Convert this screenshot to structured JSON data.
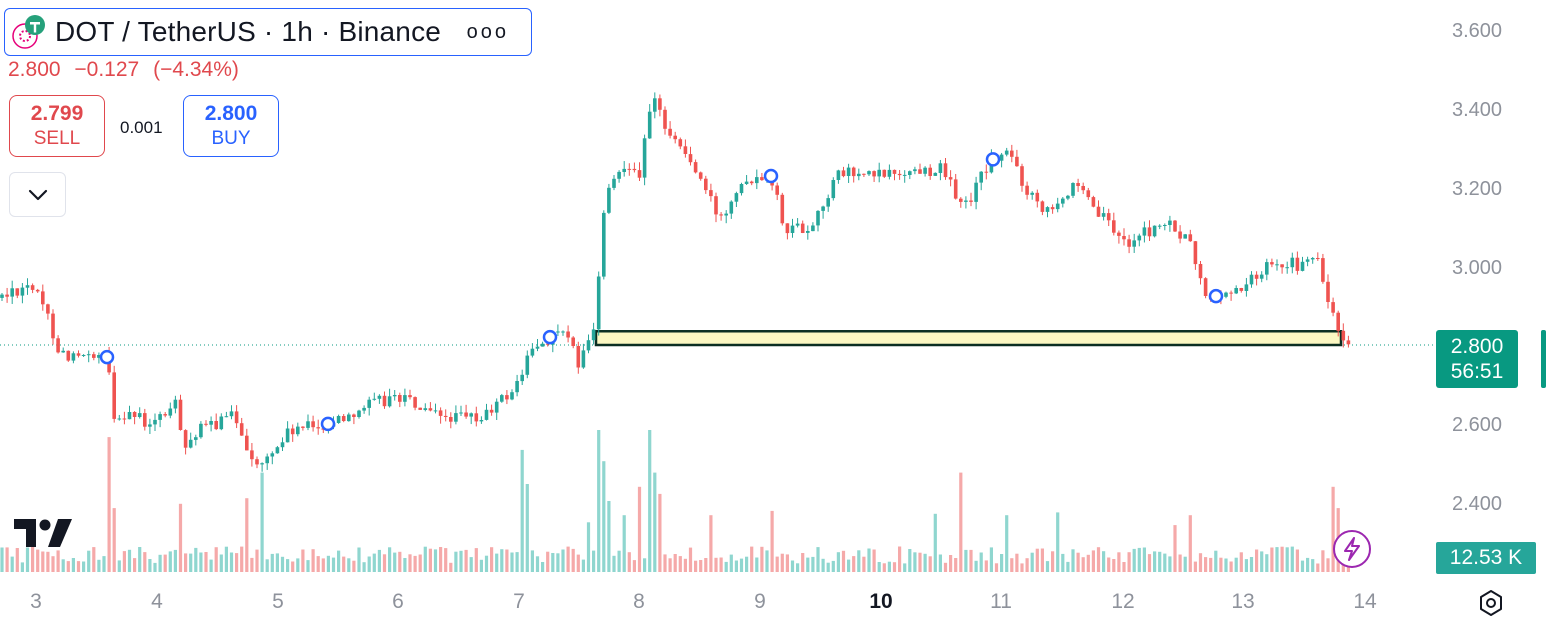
{
  "header": {
    "symbol_title": "DOT / TetherUS · 1h · Binance",
    "more_label": "ooo",
    "last_price": "2.800",
    "change": "−0.127",
    "change_pct": "(−4.34%)"
  },
  "trade": {
    "sell_price": "2.799",
    "sell_label": "SELL",
    "spread": "0.001",
    "buy_price": "2.800",
    "buy_label": "BUY"
  },
  "price_axis": {
    "labels": [
      "3.600",
      "3.400",
      "3.200",
      "3.000",
      "2.600",
      "2.400"
    ],
    "current_price": "2.800",
    "countdown": "56:51",
    "volume_label": "12.53 K"
  },
  "time_axis": {
    "labels": [
      "3",
      "4",
      "5",
      "6",
      "7",
      "8",
      "9",
      "10",
      "11",
      "12",
      "13",
      "14"
    ],
    "bold_label": "10"
  },
  "chart_data": {
    "type": "candlestick",
    "ylim": [
      2.3,
      3.65
    ],
    "x_range": [
      0,
      1366
    ],
    "zone": {
      "low": 2.8,
      "high": 2.835
    },
    "colors": {
      "up": "#26a69a",
      "down": "#ef5350",
      "vol_up": "#8fd6cf",
      "vol_down": "#f5a9a9",
      "zone_fill": "#fbf7c2",
      "zone_border": "#0b2e22",
      "marker": "#2962ff"
    },
    "price_path": [
      [
        0,
        2.92
      ],
      [
        30,
        2.96
      ],
      [
        48,
        2.87
      ],
      [
        60,
        2.78
      ],
      [
        95,
        2.76
      ],
      [
        108,
        2.77
      ],
      [
        112,
        2.62
      ],
      [
        130,
        2.63
      ],
      [
        150,
        2.59
      ],
      [
        175,
        2.65
      ],
      [
        185,
        2.55
      ],
      [
        205,
        2.59
      ],
      [
        235,
        2.62
      ],
      [
        258,
        2.48
      ],
      [
        270,
        2.52
      ],
      [
        290,
        2.58
      ],
      [
        330,
        2.6
      ],
      [
        360,
        2.64
      ],
      [
        400,
        2.67
      ],
      [
        430,
        2.62
      ],
      [
        480,
        2.61
      ],
      [
        515,
        2.69
      ],
      [
        530,
        2.78
      ],
      [
        560,
        2.84
      ],
      [
        580,
        2.75
      ],
      [
        595,
        2.85
      ],
      [
        605,
        3.17
      ],
      [
        625,
        3.27
      ],
      [
        640,
        3.24
      ],
      [
        652,
        3.43
      ],
      [
        668,
        3.35
      ],
      [
        690,
        3.27
      ],
      [
        720,
        3.12
      ],
      [
        740,
        3.22
      ],
      [
        770,
        3.24
      ],
      [
        785,
        3.1
      ],
      [
        810,
        3.1
      ],
      [
        840,
        3.24
      ],
      [
        870,
        3.23
      ],
      [
        900,
        3.24
      ],
      [
        940,
        3.25
      ],
      [
        965,
        3.15
      ],
      [
        990,
        3.27
      ],
      [
        1010,
        3.29
      ],
      [
        1025,
        3.2
      ],
      [
        1045,
        3.15
      ],
      [
        1075,
        3.2
      ],
      [
        1100,
        3.13
      ],
      [
        1125,
        3.06
      ],
      [
        1165,
        3.11
      ],
      [
        1190,
        3.06
      ],
      [
        1205,
        2.92
      ],
      [
        1230,
        2.93
      ],
      [
        1255,
        2.97
      ],
      [
        1272,
        3.02
      ],
      [
        1300,
        3.0
      ],
      [
        1318,
        3.02
      ],
      [
        1328,
        2.91
      ],
      [
        1337,
        2.84
      ],
      [
        1345,
        2.79
      ],
      [
        1352,
        2.8
      ]
    ],
    "markers_x": [
      107,
      328,
      550,
      771,
      993,
      1216
    ],
    "volume_spikes": [
      [
        110,
        0.95
      ],
      [
        115,
        0.45
      ],
      [
        183,
        0.48
      ],
      [
        248,
        0.52
      ],
      [
        260,
        0.7
      ],
      [
        263,
        0.45
      ],
      [
        520,
        0.86
      ],
      [
        525,
        0.62
      ],
      [
        590,
        0.35
      ],
      [
        598,
        0.64
      ],
      [
        601,
        1.0
      ],
      [
        606,
        0.78
      ],
      [
        611,
        0.5
      ],
      [
        625,
        0.4
      ],
      [
        640,
        0.6
      ],
      [
        650,
        1.0
      ],
      [
        655,
        0.7
      ],
      [
        660,
        0.55
      ],
      [
        710,
        0.4
      ],
      [
        770,
        0.43
      ],
      [
        935,
        0.41
      ],
      [
        963,
        0.7
      ],
      [
        1005,
        0.4
      ],
      [
        1057,
        0.42
      ],
      [
        1175,
        0.33
      ],
      [
        1190,
        0.4
      ],
      [
        1334,
        0.6
      ],
      [
        1338,
        0.45
      ]
    ]
  }
}
